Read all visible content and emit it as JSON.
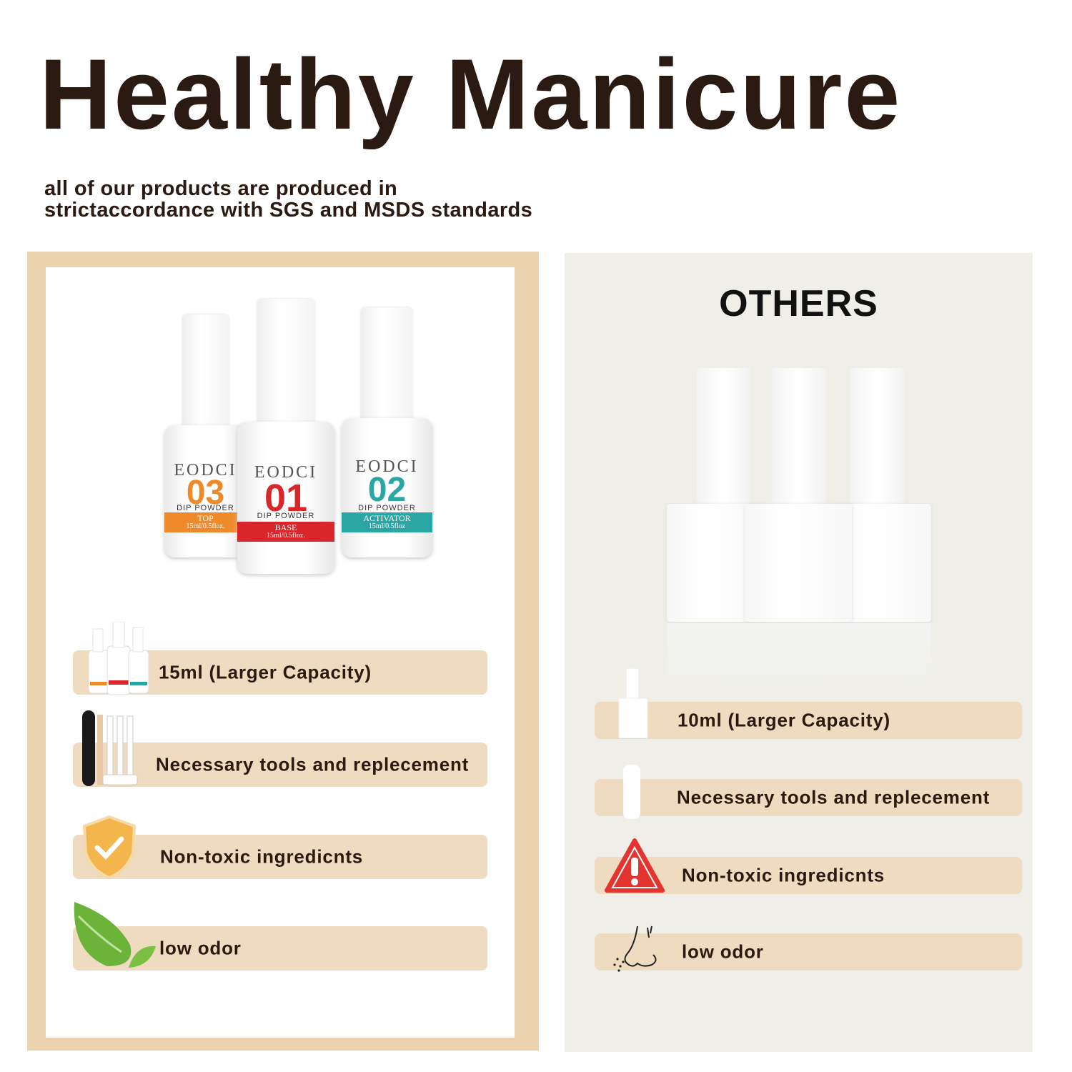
{
  "header": {
    "title": "Healthy Manicure",
    "subtitle_lines": [
      "all of our products are produced in",
      "strictaccordance with SGS and MSDS standards"
    ]
  },
  "left": {
    "products": [
      {
        "brand": "EODCI",
        "number": "03",
        "type": "DIP POWDER",
        "name": "TOP",
        "size": "15ml/0.5floz.",
        "color": "#ef8a2b"
      },
      {
        "brand": "EODCI",
        "number": "01",
        "type": "DIP POWDER",
        "name": "BASE",
        "size": "15ml/0.5floz.",
        "color": "#d9262a"
      },
      {
        "brand": "EODCI",
        "number": "02",
        "type": "DIP POWDER",
        "name": "ACTIVATOR",
        "size": "15ml/0.5floz",
        "color": "#2aa6a4"
      }
    ],
    "features": [
      {
        "label": "15ml (Larger Capacity)",
        "icon": "bottles-icon"
      },
      {
        "label": "Necessary tools and replecement",
        "icon": "tools-icon"
      },
      {
        "label": "Non-toxic ingredicnts",
        "icon": "shield-check-icon"
      },
      {
        "label": "low odor",
        "icon": "leaf-icon"
      }
    ]
  },
  "right": {
    "title": "OTHERS",
    "features": [
      {
        "label": "10ml (Larger Capacity)",
        "icon": "white-bottle-icon"
      },
      {
        "label": "Necessary tools and replecement",
        "icon": "white-stick-icon"
      },
      {
        "label": "Non-toxic ingredicnts",
        "icon": "warning-icon"
      },
      {
        "label": "low odor",
        "icon": "nose-icon"
      }
    ]
  },
  "colors": {
    "title": "#2b1a12",
    "frame": "#ebd3b0",
    "bar": "#efdbbf",
    "others_bg": "#efeee9",
    "warning": "#e3342f"
  }
}
